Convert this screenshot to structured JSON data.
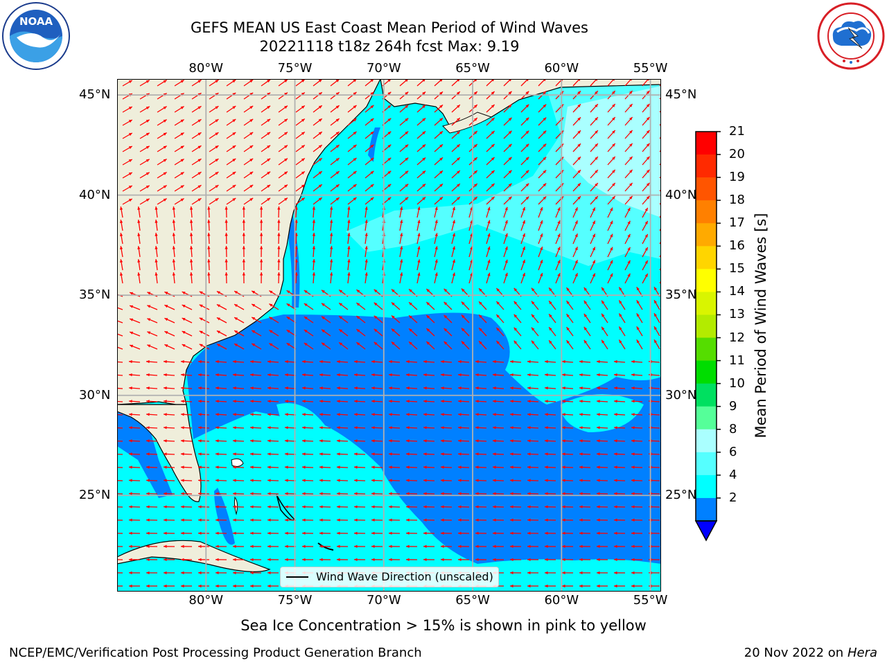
{
  "header": {
    "title_line1": "GEFS MEAN US East Coast Mean Period of Wind Waves",
    "title_line2": "20221118 t18z 264h fcst   Max: 9.19"
  },
  "logos": {
    "left": {
      "name": "noaa-logo",
      "text": "NOAA",
      "ring_text": "NATIONAL OCEANIC AND ATMOSPHERIC ADMINISTRATION · U.S. DEPARTMENT OF COMMERCE"
    },
    "right": {
      "name": "nws-logo",
      "ring_text": "NATIONAL WEATHER SERVICE"
    }
  },
  "map": {
    "lon_labels": [
      "80°W",
      "75°W",
      "70°W",
      "65°W",
      "60°W",
      "55°W"
    ],
    "lat_labels": [
      "45°N",
      "40°N",
      "35°N",
      "30°N",
      "25°N"
    ],
    "extent": {
      "lon_min": -85,
      "lon_max": -54.4,
      "lat_min": 20.2,
      "lat_max": 45.8
    },
    "colors": {
      "land": "#efeedb",
      "ocean_light": "#00fefe",
      "ocean_dark": "#0080ff",
      "vector": "#ff0000",
      "grid": "#b0b0b0"
    },
    "legend": {
      "text": "Wind Wave Direction (unscaled)"
    }
  },
  "colorbar": {
    "label": "Mean Period of Wind Waves [s]",
    "ticks": [
      "21",
      "20",
      "19",
      "18",
      "17",
      "16",
      "15",
      "14",
      "13",
      "12",
      "11",
      "10",
      "9",
      "8",
      "6",
      "4",
      "2"
    ],
    "colors": [
      "#ff0000",
      "#ff2a00",
      "#ff5500",
      "#ff8000",
      "#ffaa00",
      "#ffd500",
      "#ffff00",
      "#d9f500",
      "#b3eb00",
      "#55dd00",
      "#00dd00",
      "#00e060",
      "#55ff99",
      "#aaffff",
      "#55ffff",
      "#00ffff",
      "#0080ff"
    ],
    "under_color": "#0000ff"
  },
  "footer": {
    "note": "Sea Ice Concentration > 15% is shown in pink to yellow",
    "left": "NCEP/EMC/Verification Post Processing Product Generation Branch",
    "right_date": "20 Nov 2022 on",
    "right_machine": "Hera"
  }
}
